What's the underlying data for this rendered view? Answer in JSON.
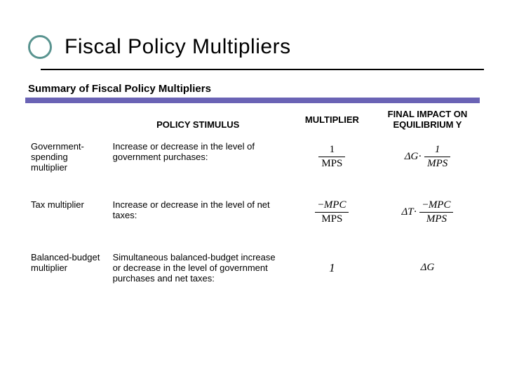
{
  "title": "Fiscal Policy Multipliers",
  "subtitle": "Summary of Fiscal Policy Multipliers",
  "colors": {
    "accent_ring": "#5a9490",
    "purple_bar": "#6a63b5",
    "text": "#000000",
    "background": "#ffffff"
  },
  "table": {
    "headers": {
      "name": "",
      "stimulus": "POLICY STIMULUS",
      "multiplier": "MULTIPLIER",
      "impact": "FINAL IMPACT ON EQUILIBRIUM Y"
    },
    "rows": [
      {
        "name": "Government-spending multiplier",
        "stimulus": "Increase or decrease in the level of government purchases:",
        "multiplier_html": "frac_1_over_MPS",
        "impact_html": "dG_times_1_over_MPS"
      },
      {
        "name": "Tax multiplier",
        "stimulus": "Increase or decrease in the level of net taxes:",
        "multiplier_html": "frac_negMPC_over_MPS",
        "impact_html": "dT_times_negMPC_over_MPS"
      },
      {
        "name": "Balanced-budget multiplier",
        "stimulus": "Simultaneous balanced-budget increase or decrease in the level of government purchases and net taxes:",
        "multiplier_html": "one",
        "impact_html": "dG"
      }
    ]
  },
  "formula_parts": {
    "one": "1",
    "MPS": "MPS",
    "MPC": "MPC",
    "dG": "ΔG",
    "dT": "ΔT",
    "dot": "·",
    "neg": "−"
  }
}
